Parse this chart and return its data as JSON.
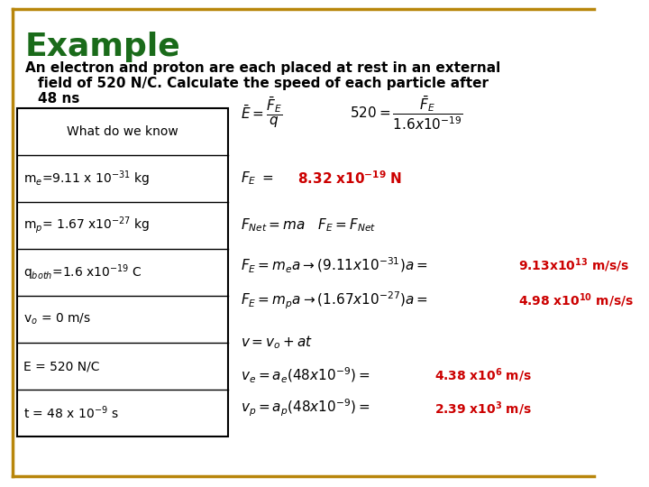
{
  "title": "Example",
  "subtitle_line1": "An electron and proton are each placed at rest in an external",
  "subtitle_line2": "field of 520 N/C. Calculate the speed of each particle after",
  "subtitle_line3": "48 ns",
  "title_color": "#1a6b1a",
  "subtitle_color": "#000000",
  "bg_color": "#ffffff",
  "border_color": "#b8860b",
  "table_header": "What do we know",
  "table_rows": [
    "m$_e$=9.11 x 10$^{-31}$ kg",
    "m$_p$= 1.67 x10$^{-27}$ kg",
    "q$_{both}$=1.6 x10$^{-19}$ C",
    "v$_o$ = 0 m/s",
    "E = 520 N/C",
    "t = 48 x 10$^{-9}$ s"
  ],
  "answer_color": "#cc0000",
  "table_text_color": "#000000",
  "eq_color": "#000000",
  "title_fontsize": 26,
  "subtitle_fontsize": 11,
  "eq_fontsize": 11,
  "table_fontsize": 10,
  "ans_fontsize": 10
}
